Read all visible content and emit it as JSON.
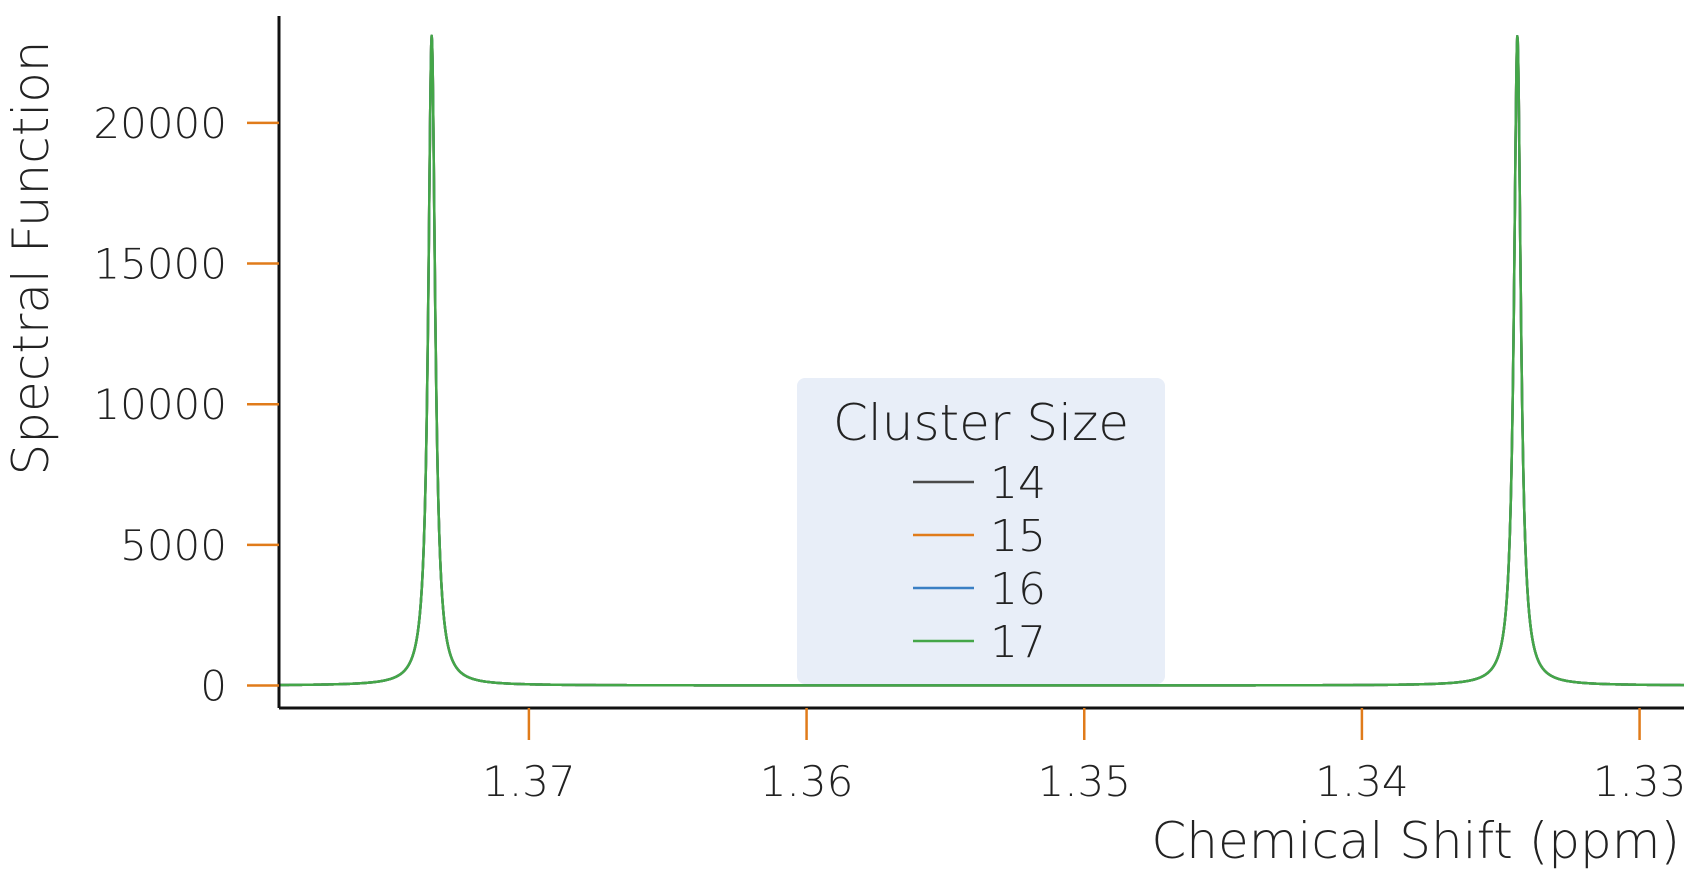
{
  "chart_data": {
    "type": "line",
    "title": "",
    "xlabel": "Chemical Shift (ppm)",
    "ylabel": "Spectral Function",
    "xlim": [
      1.379,
      1.3284
    ],
    "ylim": [
      -800,
      23800
    ],
    "x_reversed": true,
    "x_ticks": [
      1.37,
      1.36,
      1.35,
      1.34,
      1.33
    ],
    "x_tick_labels": [
      "1.37",
      "1.36",
      "1.35",
      "1.34",
      "1.33"
    ],
    "y_ticks": [
      0,
      5000,
      10000,
      15000,
      20000
    ],
    "y_tick_labels": [
      "0",
      "5000",
      "10000",
      "15000",
      "20000"
    ],
    "grid": false,
    "legend": {
      "title": "Cluster Size",
      "placement": "bottom-center"
    },
    "peaks": [
      {
        "center": 1.3735,
        "height": 23100,
        "halfwidth": 0.00015
      },
      {
        "center": 1.3344,
        "height": 23100,
        "halfwidth": 0.00015
      }
    ],
    "series": [
      {
        "name": "14",
        "color": "#4a4a4a"
      },
      {
        "name": "15",
        "color": "#e07b1a"
      },
      {
        "name": "16",
        "color": "#3a7fc4"
      },
      {
        "name": "17",
        "color": "#44a648"
      }
    ]
  },
  "colors": {
    "axis": "#111111",
    "tick": "#e07b1a",
    "legend_bg": "#e8eef8"
  }
}
